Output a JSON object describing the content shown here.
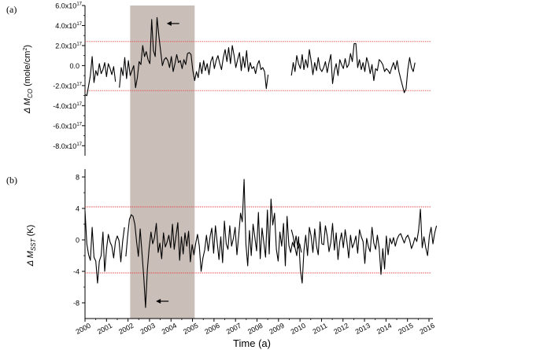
{
  "chart_data": {
    "type": "line",
    "xlabel": "Time (a)",
    "x_ticks": [
      "2000",
      "2001",
      "2002",
      "2003",
      "2004",
      "2005",
      "2006",
      "2007",
      "2008",
      "2009",
      "2010",
      "2011",
      "2012",
      "2013",
      "2014",
      "2015",
      "2016"
    ],
    "xlim": [
      2000,
      2016
    ],
    "highlight_band": [
      2002.1,
      2005.1
    ],
    "colors": {
      "series": "#000000",
      "threshold": "#e8474a",
      "band": "#c9beb8"
    },
    "panels": [
      {
        "label": "(a)",
        "ylabel": "Δ M",
        "ylabel_sub": "CO",
        "ylabel_unit": " (mole/cm",
        "ylabel_sup": "2",
        "ylabel_end": ")",
        "ylim": [
          -9e+17,
          6e+17
        ],
        "y_ticks": [
          {
            "value": 6e+17,
            "label": "6.0x10",
            "sup": "17"
          },
          {
            "value": 4e+17,
            "label": "4.0x10",
            "sup": "17"
          },
          {
            "value": 2e+17,
            "label": "2.0x10",
            "sup": "17"
          },
          {
            "value": 0,
            "label": "0.0",
            "sup": ""
          },
          {
            "value": -2e+17,
            "label": "-2.0x10",
            "sup": "17"
          },
          {
            "value": -4e+17,
            "label": "-4.0x10",
            "sup": "17"
          },
          {
            "value": -6e+17,
            "label": "-6.0x10",
            "sup": "17"
          },
          {
            "value": -8e+17,
            "label": "-8.0x10",
            "sup": "17"
          }
        ],
        "thresholds": [
          2.4e+17,
          -2.5e+17
        ],
        "arrow": {
          "x": 2003.8,
          "y": 4.2e+17,
          "direction": "left"
        },
        "segments": [
          {
            "x0": 2000.0,
            "values": [
              -2.9e+17,
              -3e+17,
              -2e+17,
              -1e+17,
              9e+16,
              -1.7e+17,
              -5e+16,
              -1e+17,
              2e+16,
              -8e+16,
              -4e+16,
              3e+16,
              -1.1e+17,
              2e+16,
              -3e+16,
              -9e+16,
              -1e+16,
              -1.6e+17
            ]
          },
          {
            "x0": 2001.6,
            "values": [
              -2.2e+17,
              -2e+16,
              -1e+17,
              8e+16,
              -1.3e+17,
              5e+16,
              -1e+17,
              -5e+16,
              0.0,
              -2.2e+17,
              -1.2e+17,
              4e+16,
              1e+16,
              2e+17,
              9e+16,
              1.4e+17,
              6e+16,
              2e+16,
              4.6e+17,
              1.5e+17,
              9e+16,
              4.8e+17,
              3e+17,
              1.5e+17,
              0.0,
              6e+16,
              8e+16,
              5e+16,
              -2e+16,
              9e+16,
              -6e+16,
              2e+16,
              1.1e+17,
              3e+16,
              5e+16,
              -3e+16,
              6e+16,
              1e+16,
              1.2e+17,
              1.3e+17,
              1.1e+17,
              -5e+16,
              -1.5e+17,
              -6e+16,
              -1.2e+17,
              3e+16,
              -8e+16,
              5e+16,
              -5e+16,
              2e+16,
              -9e+16,
              4e+16,
              9e+16,
              -3e+16,
              5e+16,
              1e+17,
              2e+16,
              -4e+16,
              8e+16,
              1.6e+17,
              4e+16,
              1.8e+17,
              2e+16,
              2e+17,
              1e+17,
              -2e+16,
              6e+16,
              1.3e+17,
              -5e+16,
              9e+16,
              -2e+16,
              1.5e+17,
              -6e+16,
              3e+16,
              -3e+16,
              -1e+16,
              -8e+16,
              1e+16,
              5e+16,
              -4e+16,
              -2e+16,
              -6e+16,
              -2.3e+17,
              -9e+16
            ]
          },
          {
            "x0": 2009.6,
            "values": [
              -1e+17,
              3e+16,
              -6e+16,
              1e+17,
              2e+16,
              -3e+16,
              1.1e+17,
              -4e+16,
              6e+16,
              -2e+16,
              1.6e+17,
              5e+16,
              -9e+16,
              3e+16,
              -5e+16,
              8e+16,
              -3e+16,
              -6e+16,
              -2e+16,
              4e+16,
              -7e+16,
              3e+16,
              1.1e+17,
              -1.8e+17,
              -5e+16,
              2e+16,
              -1e+17,
              6e+16,
              1e+16,
              -3e+16,
              7e+16,
              -2e+16,
              1e+16,
              1.2e+17,
              4e+16,
              2.2e+17,
              2.2e+17,
              -2e+16,
              6e+16,
              -4e+16,
              3e+16,
              -6e+16,
              8e+16,
              2e+16,
              -8e+16,
              1e+16,
              -1.5e+17,
              -3e+16,
              -5e+16,
              6e+16,
              4e+16,
              1e+16,
              -6e+16,
              -3e+16,
              -5e+16,
              -8e+16,
              -2e+16,
              3e+16,
              -4e+16,
              5e+16,
              -6e+16,
              -1.3e+17,
              -2e+17,
              -2.7e+17,
              -2.3e+17,
              -4e+16,
              8e+16,
              -2e+16,
              -6e+16,
              3e+16
            ]
          }
        ]
      },
      {
        "label": "(b)",
        "ylabel": "Δ M",
        "ylabel_sub": "SST",
        "ylabel_unit": " (K)",
        "ylabel_sup": "",
        "ylabel_end": "",
        "ylim": [
          -10,
          9
        ],
        "y_ticks": [
          {
            "value": 8,
            "label": "8",
            "sup": ""
          },
          {
            "value": 4,
            "label": "4",
            "sup": ""
          },
          {
            "value": 0,
            "label": "0",
            "sup": ""
          },
          {
            "value": -4,
            "label": "-4",
            "sup": ""
          },
          {
            "value": -8,
            "label": "-8",
            "sup": ""
          }
        ],
        "thresholds": [
          4.2,
          -4.2
        ],
        "arrow": {
          "x": 2003.3,
          "y": -7.8,
          "direction": "left"
        },
        "segments": [
          {
            "x0": 2000.0,
            "values": [
              3.7,
              -0.5,
              -1.9,
              -2.6,
              1.6,
              -2.2,
              -2.7,
              -5.5,
              -2.7,
              -2.0,
              1.0,
              -4.0,
              -1.2,
              0.7,
              -0.3,
              -0.8,
              -2.3,
              -0.2,
              0.5,
              -0.1,
              -2.8,
              -0.2,
              1.6
            ]
          },
          {
            "x0": 2001.9,
            "values": [
              -2.1,
              0.5,
              2.6,
              3.2,
              3.0,
              2.0,
              -0.3,
              -2.1,
              1.4,
              -1.7,
              -4.8,
              -8.6,
              -3.8,
              -1.0,
              1.0,
              -0.5,
              0.3,
              2.1,
              -1.6,
              -0.4,
              -2.4,
              0.9,
              -0.9,
              -0.3,
              0.6,
              -1.0,
              2.0,
              -1.2,
              0.5,
              2.2,
              -2.6,
              0.4,
              -1.8,
              0.9,
              -0.8,
              1.1,
              -2.8,
              -0.6,
              -1.9,
              -0.4,
              0.7,
              -0.8,
              -4.0,
              -2.3,
              -1.3,
              0.6,
              -1.4,
              0.4,
              1.5,
              -1.7,
              1.8,
              -0.4,
              -2.5,
              0.4,
              -2.9,
              2.4,
              -0.5,
              -1.2,
              1.8,
              -0.8,
              0.2,
              1.6,
              -1.9,
              0.6,
              3.4,
              2.3,
              7.7,
              -0.5,
              -3.3,
              1.2,
              -2.0,
              2.0,
              0.3,
              -1.4,
              3.5,
              -2.4,
              1.5,
              -0.3,
              -2.2,
              3.8,
              -1.8,
              5.2,
              1.9,
              3.4,
              -1.2,
              -2.7,
              1.0,
              -0.8,
              2.1,
              -3.3,
              3.0,
              -0.7,
              -1.6,
              -0.3,
              -0.9,
              0.5,
              -1.1,
              -0.5,
              -1.6
            ]
          },
          {
            "x0": 2009.6,
            "values": [
              1.3,
              0.4,
              -1.0,
              -2.0,
              0.4,
              -3.8,
              -5.5,
              -1.4,
              0.6,
              -2.0,
              1.6,
              0.5,
              -1.6,
              1.4,
              -0.8,
              -1.9,
              2.3,
              -0.5,
              -0.6,
              1.8,
              0.5,
              -1.5,
              -0.3,
              2.1,
              -1.3,
              0.9,
              -2.5,
              -0.2,
              0.9,
              -1.0,
              1.3,
              -0.3,
              -2.3,
              0.6,
              -1.0,
              -0.4,
              0.5,
              -1.7,
              1.3,
              0.4,
              -0.2,
              -3.0,
              0.2,
              -0.9,
              -1.5,
              1.6,
              -0.4,
              -1.2,
              0.6,
              -1.0,
              -4.4,
              -1.1,
              -3.7,
              0.5,
              -1.9,
              0.2,
              -0.5,
              0.3,
              -0.8,
              0.1,
              0.6,
              0.8,
              0.2,
              -0.4,
              0.3,
              0.6,
              0.0,
              -1.1,
              -0.5,
              0.3,
              -0.2,
              1.2,
              3.9,
              -1.0,
              0.4,
              -1.0,
              -2.0,
              0.5,
              1.6,
              -0.5,
              0.9,
              1.8
            ]
          }
        ]
      }
    ]
  }
}
